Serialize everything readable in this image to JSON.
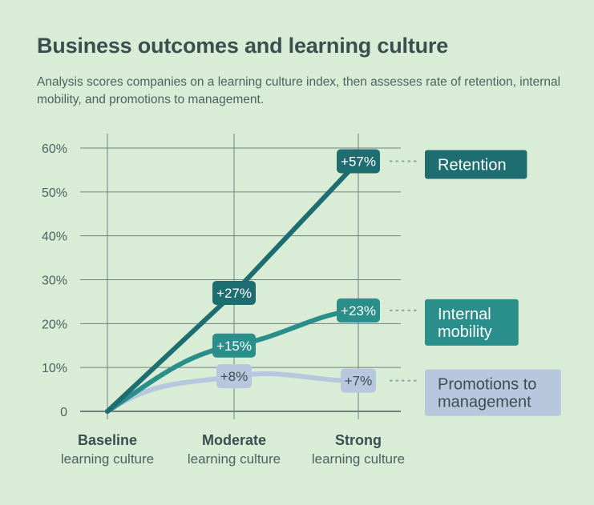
{
  "title": "Business outcomes and learning culture",
  "subtitle": "Analysis scores companies on a learning culture index, then assesses rate of retention, internal mobility, and promotions to management.",
  "chart_data": {
    "type": "line",
    "title": "Business outcomes and learning culture",
    "categories": [
      {
        "main": "Baseline",
        "sub": "learning culture"
      },
      {
        "main": "Moderate",
        "sub": "learning culture"
      },
      {
        "main": "Strong",
        "sub": "learning culture"
      }
    ],
    "y_ticks": [
      "0",
      "10%",
      "20%",
      "30%",
      "40%",
      "50%",
      "60%"
    ],
    "ylim": [
      0,
      60
    ],
    "grid": true,
    "series": [
      {
        "name": "Retention",
        "legend_lines": [
          "Retention"
        ],
        "values": [
          0,
          27,
          57
        ],
        "labels": [
          "",
          "+27%",
          "+57%"
        ],
        "color": "#1e6d70",
        "label_text_color": "#ffffff"
      },
      {
        "name": "Internal mobility",
        "legend_lines": [
          "Internal",
          "mobility"
        ],
        "values": [
          0,
          15,
          23
        ],
        "labels": [
          "",
          "+15%",
          "+23%"
        ],
        "color": "#2a8e8a",
        "label_text_color": "#ffffff"
      },
      {
        "name": "Promotions to management",
        "legend_lines": [
          "Promotions to",
          "management"
        ],
        "values": [
          0,
          8,
          7
        ],
        "labels": [
          "",
          "+8%",
          "+7%"
        ],
        "color": "#b7c7dd",
        "label_text_color": "#3a4f50"
      }
    ]
  }
}
